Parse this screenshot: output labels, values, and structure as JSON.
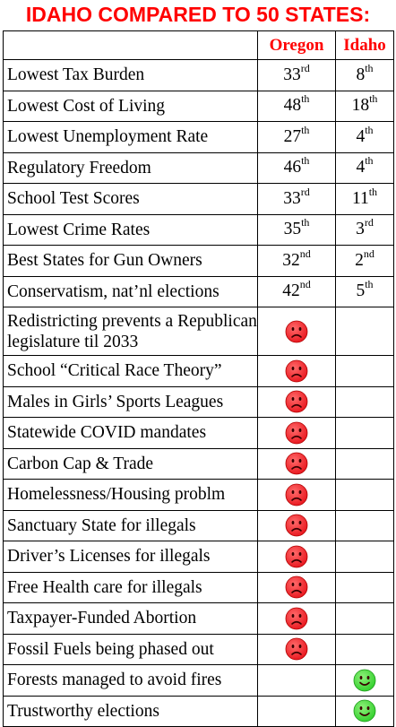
{
  "title": "IDAHO COMPARED TO 50 STATES:",
  "colors": {
    "title": "#ff0000",
    "sad_face": "#e8141c",
    "happy_face": "#2fcf2a"
  },
  "headers": {
    "category": "",
    "oregon": "Oregon",
    "idaho": "Idaho"
  },
  "rank_rows": [
    {
      "label": "Lowest Tax Burden",
      "oregon": {
        "num": "33",
        "suf": "rd"
      },
      "idaho": {
        "num": "8",
        "suf": "th"
      }
    },
    {
      "label": "Lowest Cost of Living",
      "oregon": {
        "num": "48",
        "suf": "th"
      },
      "idaho": {
        "num": "18",
        "suf": "th"
      }
    },
    {
      "label": "Lowest Unemployment Rate",
      "oregon": {
        "num": "27",
        "suf": "th"
      },
      "idaho": {
        "num": "4",
        "suf": "th"
      }
    },
    {
      "label": "Regulatory Freedom",
      "oregon": {
        "num": "46",
        "suf": "th"
      },
      "idaho": {
        "num": "4",
        "suf": "th"
      }
    },
    {
      "label": "School Test Scores",
      "oregon": {
        "num": "33",
        "suf": "rd"
      },
      "idaho": {
        "num": "11",
        "suf": "th"
      }
    },
    {
      "label": "Lowest Crime Rates",
      "oregon": {
        "num": "35",
        "suf": "th"
      },
      "idaho": {
        "num": "3",
        "suf": "rd"
      }
    },
    {
      "label": "Best States for Gun Owners",
      "oregon": {
        "num": "32",
        "suf": "nd"
      },
      "idaho": {
        "num": "2",
        "suf": "nd"
      }
    },
    {
      "label": "Conservatism, nat’nl elections",
      "oregon": {
        "num": "42",
        "suf": "nd"
      },
      "idaho": {
        "num": "5",
        "suf": "th"
      }
    }
  ],
  "icon_rows": [
    {
      "label": "Redistricting prevents a Republican legislature til 2033",
      "oregon": "sad-face-icon",
      "idaho": ""
    },
    {
      "label": "School “Critical Race Theory”",
      "oregon": "sad-face-icon",
      "idaho": ""
    },
    {
      "label": "Males in Girls’ Sports Leagues",
      "oregon": "sad-face-icon",
      "idaho": ""
    },
    {
      "label": "Statewide COVID mandates",
      "oregon": "sad-face-icon",
      "idaho": ""
    },
    {
      "label": "Carbon Cap & Trade",
      "oregon": "sad-face-icon",
      "idaho": ""
    },
    {
      "label": "Homelessness/Housing problm",
      "oregon": "sad-face-icon",
      "idaho": ""
    },
    {
      "label": "Sanctuary State for illegals",
      "oregon": "sad-face-icon",
      "idaho": ""
    },
    {
      "label": "Driver’s Licenses for illegals",
      "oregon": "sad-face-icon",
      "idaho": ""
    },
    {
      "label": "Free Health care for illegals",
      "oregon": "sad-face-icon",
      "idaho": ""
    },
    {
      "label": "Taxpayer-Funded Abortion",
      "oregon": "sad-face-icon",
      "idaho": ""
    },
    {
      "label": "Fossil Fuels being phased out",
      "oregon": "sad-face-icon",
      "idaho": ""
    },
    {
      "label": "Forests managed to avoid fires",
      "oregon": "",
      "idaho": "happy-face-icon"
    },
    {
      "label": "Trustworthy elections",
      "oregon": "",
      "idaho": "happy-face-icon"
    }
  ]
}
